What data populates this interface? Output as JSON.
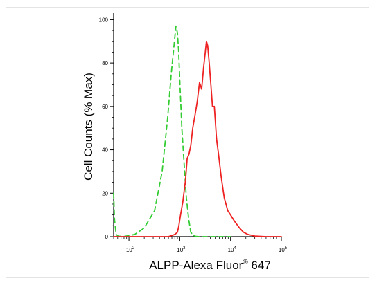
{
  "chart_data": {
    "type": "line",
    "xlabel": "ALPP-Alexa Fluor",
    "xlabel_sup": "®",
    "xlabel_tail": " 647",
    "ylabel": "Cell Counts (% Max)",
    "x_scale": "log",
    "xlim": [
      50,
      100000
    ],
    "ylim": [
      0,
      103
    ],
    "x_ticks": [
      {
        "base": "10",
        "exp": "2",
        "value": 100
      },
      {
        "base": "10",
        "exp": "3",
        "value": 1000
      },
      {
        "base": "10",
        "exp": "4",
        "value": 10000
      },
      {
        "base": "10",
        "exp": "5",
        "value": 100000
      }
    ],
    "y_ticks": [
      0,
      20,
      40,
      60,
      80,
      100
    ],
    "grid": false,
    "series": [
      {
        "style": "dashed",
        "color": "#33cc33",
        "x": [
          50,
          52,
          56,
          62,
          80,
          130,
          200,
          320,
          450,
          580,
          680,
          770,
          840,
          900,
          950,
          1000,
          1100,
          1200,
          1350,
          1500,
          1650,
          1850,
          2100,
          2500,
          3500,
          5000,
          10000
        ],
        "y": [
          20,
          8,
          1,
          0.2,
          0.1,
          1,
          4,
          12,
          30,
          55,
          75,
          88,
          97,
          94,
          86,
          72,
          50,
          36,
          18,
          8,
          2,
          0.5,
          0.1,
          0,
          0,
          0,
          0
        ]
      },
      {
        "style": "solid",
        "color": "#ee2222",
        "x": [
          50,
          200,
          600,
          800,
          900,
          960,
          1020,
          1150,
          1300,
          1400,
          1520,
          1650,
          1800,
          2000,
          2200,
          2450,
          2700,
          2950,
          3150,
          3350,
          3550,
          3800,
          4100,
          4400,
          4800,
          5300,
          5800,
          6500,
          7500,
          8800,
          10000,
          12000,
          15000,
          18000,
          22000,
          30000,
          50000,
          100000
        ],
        "y": [
          0,
          0,
          0,
          1,
          2,
          5,
          9,
          16,
          26,
          36,
          38,
          42,
          50,
          56,
          62,
          71,
          68,
          78,
          84,
          90,
          88,
          80,
          70,
          60,
          60,
          45,
          38,
          28,
          18,
          12,
          10,
          7,
          4,
          2,
          1,
          0.3,
          0,
          0
        ]
      }
    ]
  }
}
